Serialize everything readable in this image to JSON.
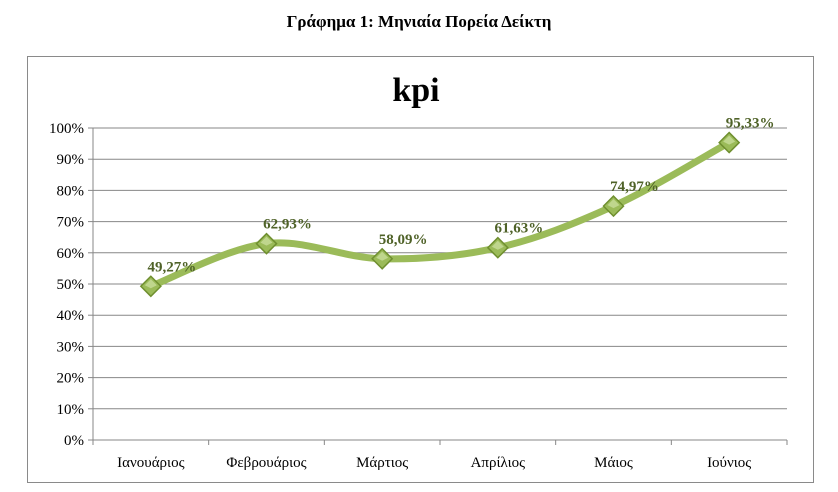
{
  "caption": "Γράφημα 1: Μηνιαία Πορεία Δείκτη",
  "colors": {
    "line": "#9bbb59",
    "marker": "#9bbb59",
    "marker_dark": "#6f8f2f",
    "label": "#4f6228",
    "grid": "#878787"
  },
  "chart_data": {
    "type": "line",
    "title": "kpi",
    "xlabel": "",
    "ylabel": "",
    "categories": [
      "Ιανουάριος",
      "Φεβρουάριος",
      "Μάρτιος",
      "Απρίλιος",
      "Μάιος",
      "Ιούνιος"
    ],
    "series": [
      {
        "name": "kpi",
        "values": [
          49.27,
          62.93,
          58.09,
          61.63,
          74.97,
          95.33
        ],
        "labels": [
          "49,27%",
          "62,93%",
          "58,09%",
          "61,63%",
          "74,97%",
          "95,33%"
        ]
      }
    ],
    "ylim": [
      0,
      100
    ],
    "yticks": [
      "0%",
      "10%",
      "20%",
      "30%",
      "40%",
      "50%",
      "60%",
      "70%",
      "80%",
      "90%",
      "100%"
    ],
    "grid": true,
    "legend": "none"
  }
}
